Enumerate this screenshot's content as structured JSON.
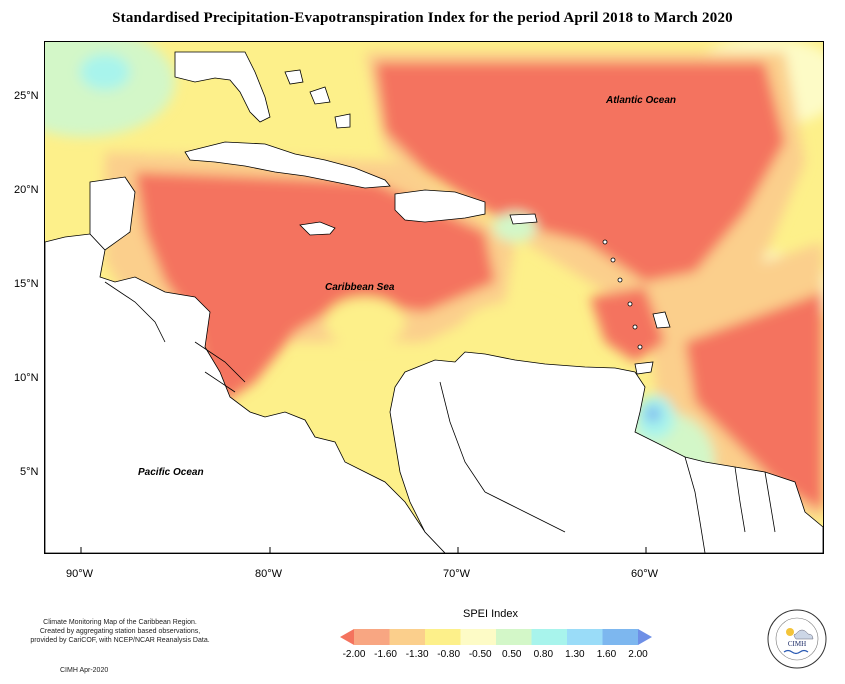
{
  "title": "Standardised Precipitation-Evapotranspiration Index for the period April 2018 to March 2020",
  "map": {
    "lat_labels": [
      "25°N",
      "20°N",
      "15°N",
      "10°N",
      "5°N"
    ],
    "lon_labels": [
      "90°W",
      "80°W",
      "70°W",
      "60°W"
    ],
    "region_labels": {
      "atlantic": "Atlantic Ocean",
      "caribbean": "Caribbean Sea",
      "pacific": "Pacific Ocean"
    }
  },
  "legend": {
    "title": "SPEI Index",
    "ticks": [
      "-2.00",
      "-1.60",
      "-1.30",
      "-0.80",
      "-0.50",
      "0.50",
      "0.80",
      "1.30",
      "1.60",
      "2.00"
    ],
    "colors": [
      "#f4735e",
      "#f8a682",
      "#fbcf8c",
      "#fdf08a",
      "#fdfbc6",
      "#d3f7c8",
      "#a8f4ec",
      "#9adcf8",
      "#7db7ef",
      "#6e8fe6"
    ]
  },
  "footer": {
    "line1": "Climate Monitoring Map of the Caribbean Region.",
    "line2": "Created by aggregating station based observations,",
    "line3": "provided by CariCOF, with NCEP/NCAR Reanalysis Data.",
    "date": "CIMH Apr-2020"
  },
  "logo": {
    "text": "CIMH"
  }
}
